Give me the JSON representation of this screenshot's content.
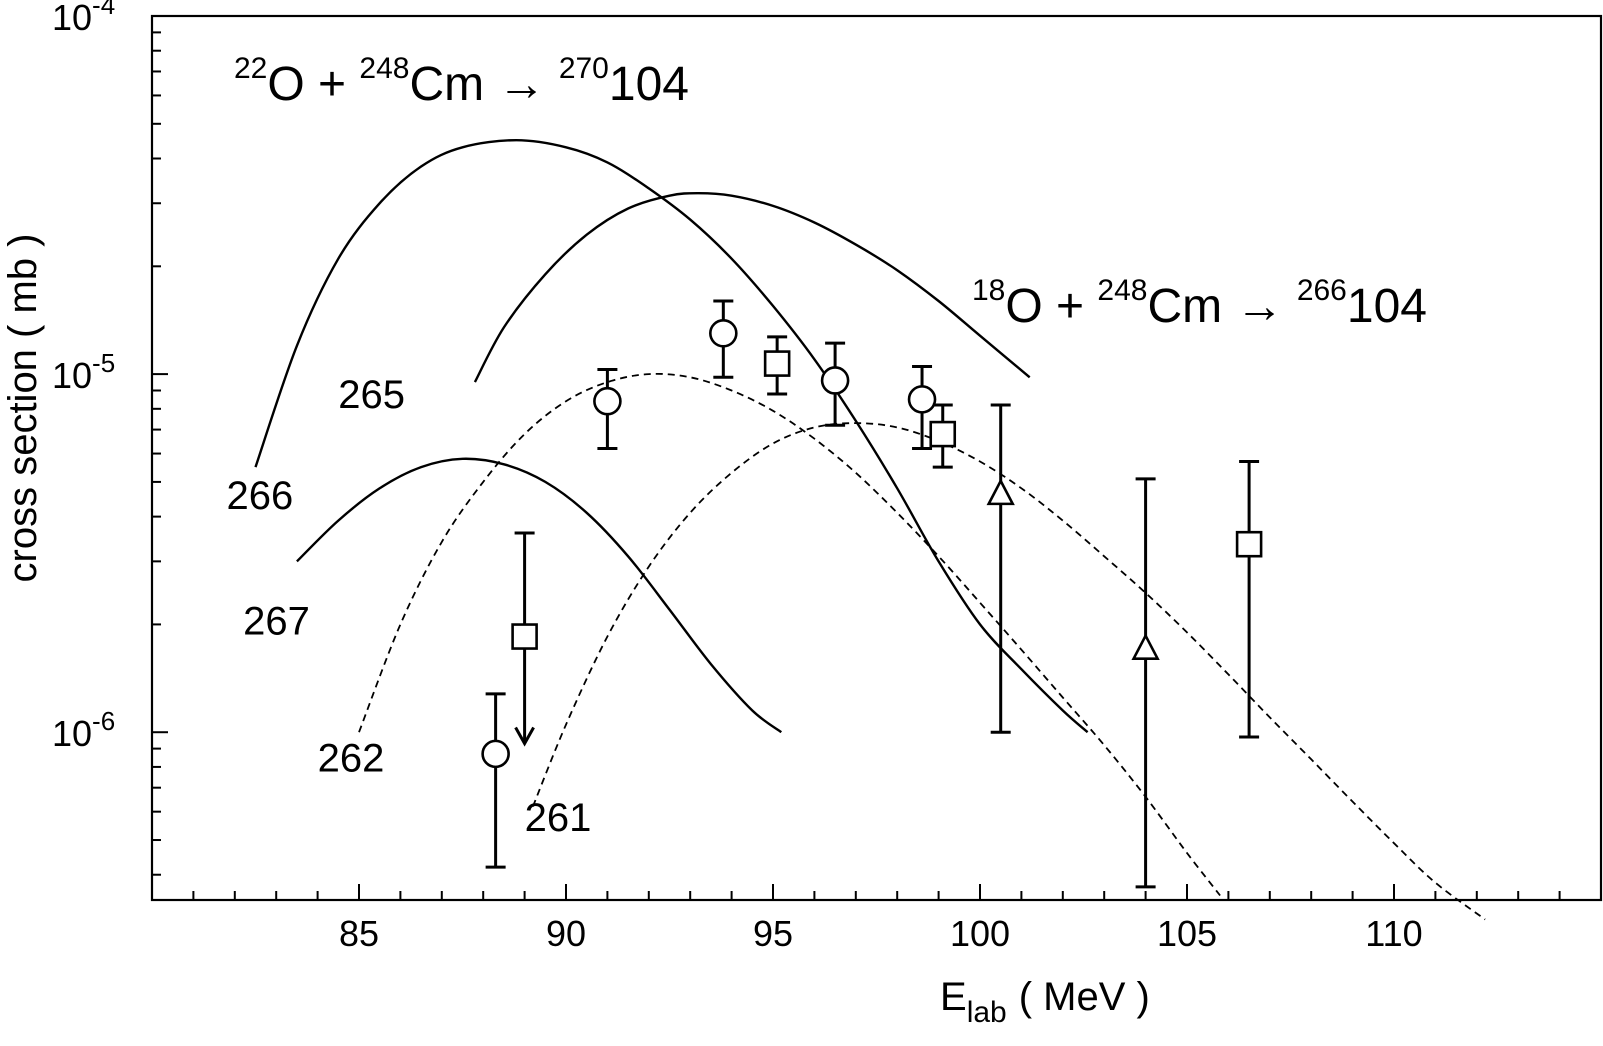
{
  "chart_data": {
    "type": "scatter",
    "xlabel_main": "E",
    "xlabel_sub": "lab",
    "xlabel_unit": "( MeV )",
    "ylabel": "cross section ( mb )",
    "xlim": [
      80,
      115
    ],
    "ylim": [
      3.4e-07,
      0.0001
    ],
    "yscale": "log",
    "x_ticks": [
      85,
      90,
      95,
      100,
      105,
      110
    ],
    "y_tick_labels": [
      {
        "value": 0.0001,
        "base": "10",
        "exp": "-4"
      },
      {
        "value": 1e-05,
        "base": "10",
        "exp": "-5"
      },
      {
        "value": 1e-06,
        "base": "10",
        "exp": "-6"
      }
    ],
    "reactions": [
      {
        "id": "r22",
        "parts": [
          "22",
          "O + ",
          "248",
          "Cm → ",
          "270",
          "104"
        ]
      },
      {
        "id": "r18",
        "parts": [
          "18",
          "O + ",
          "248",
          "Cm → ",
          "266",
          "104"
        ]
      }
    ],
    "series": [
      {
        "name": "266",
        "style": "solid",
        "x": [
          82.5,
          83.5,
          84.5,
          85.5,
          86.5,
          87.5,
          88.8,
          90,
          91,
          92,
          93,
          94,
          95,
          96,
          97,
          98,
          99,
          100,
          101,
          102,
          102.6
        ],
        "y": [
          5.5e-06,
          1.2e-05,
          2.1e-05,
          3e-05,
          3.8e-05,
          4.3e-05,
          4.5e-05,
          4.3e-05,
          3.9e-05,
          3.3e-05,
          2.7e-05,
          2.1e-05,
          1.55e-05,
          1.1e-05,
          7.4e-06,
          4.8e-06,
          3e-06,
          2e-06,
          1.5e-06,
          1.15e-06,
          1e-06
        ]
      },
      {
        "name": "265",
        "style": "solid",
        "x": [
          87.8,
          88.5,
          89.5,
          90.5,
          91.5,
          92.5,
          93.2,
          94,
          95,
          96,
          97,
          98,
          99,
          100,
          101.2
        ],
        "y": [
          9.5e-06,
          1.35e-05,
          1.9e-05,
          2.45e-05,
          2.9e-05,
          3.15e-05,
          3.2e-05,
          3.15e-05,
          2.95e-05,
          2.65e-05,
          2.3e-05,
          1.95e-05,
          1.6e-05,
          1.28e-05,
          9.8e-06
        ]
      },
      {
        "name": "267",
        "style": "solid",
        "x": [
          83.5,
          84.5,
          85.5,
          86.5,
          87.5,
          88.5,
          89.5,
          90.5,
          91.5,
          92.5,
          93.5,
          94.5,
          95.2
        ],
        "y": [
          3e-06,
          3.9e-06,
          4.8e-06,
          5.5e-06,
          5.8e-06,
          5.6e-06,
          5e-06,
          4.1e-06,
          3.1e-06,
          2.2e-06,
          1.55e-06,
          1.15e-06,
          1e-06
        ]
      },
      {
        "name": "262",
        "style": "dashed",
        "x": [
          85,
          86,
          87,
          88,
          89,
          90,
          91,
          92,
          93,
          94,
          95,
          96,
          97,
          98,
          99,
          100,
          101,
          102,
          103,
          104,
          105,
          105.8
        ],
        "y": [
          1e-06,
          2e-06,
          3.4e-06,
          5e-06,
          6.8e-06,
          8.4e-06,
          9.5e-06,
          1e-05,
          9.8e-06,
          9e-06,
          7.9e-06,
          6.6e-06,
          5.3e-06,
          4.1e-06,
          3.1e-06,
          2.3e-06,
          1.7e-06,
          1.25e-06,
          9.2e-07,
          6.6e-07,
          4.6e-07,
          3.5e-07
        ]
      },
      {
        "name": "261",
        "style": "dashed",
        "x": [
          89.2,
          90,
          91,
          92,
          93,
          94,
          95,
          96,
          97,
          98,
          99,
          100,
          101,
          102,
          103,
          104,
          105,
          106,
          107,
          108,
          109,
          110,
          111,
          112.2
        ],
        "y": [
          6.2e-07,
          1.05e-06,
          1.85e-06,
          2.9e-06,
          4.1e-06,
          5.3e-06,
          6.4e-06,
          7.1e-06,
          7.3e-06,
          7.1e-06,
          6.5e-06,
          5.7e-06,
          4.8e-06,
          3.9e-06,
          3.1e-06,
          2.45e-06,
          1.9e-06,
          1.45e-06,
          1.1e-06,
          8.4e-07,
          6.4e-07,
          4.9e-07,
          3.8e-07,
          3e-07
        ]
      }
    ],
    "curve_labels": [
      {
        "text": "266",
        "x": 81.8,
        "y": 4.6e-06
      },
      {
        "text": "265",
        "x": 84.5,
        "y": 8.8e-06
      },
      {
        "text": "267",
        "x": 82.2,
        "y": 2.05e-06
      },
      {
        "text": "262",
        "x": 84.0,
        "y": 8.5e-07
      },
      {
        "text": "261",
        "x": 89.0,
        "y": 5.8e-07
      }
    ],
    "points": [
      {
        "marker": "circle",
        "x": 88.3,
        "y": 8.7e-07,
        "ylo": 4.2e-07,
        "yhi": 1.28e-06
      },
      {
        "marker": "circle",
        "x": 91.0,
        "y": 8.4e-06,
        "ylo": 6.2e-06,
        "yhi": 1.03e-05
      },
      {
        "marker": "circle",
        "x": 93.8,
        "y": 1.3e-05,
        "ylo": 9.8e-06,
        "yhi": 1.6e-05
      },
      {
        "marker": "circle",
        "x": 96.5,
        "y": 9.6e-06,
        "ylo": 7.2e-06,
        "yhi": 1.22e-05
      },
      {
        "marker": "circle",
        "x": 98.6,
        "y": 8.5e-06,
        "ylo": 6.2e-06,
        "yhi": 1.05e-05
      },
      {
        "marker": "square",
        "x": 89.0,
        "y": 1.85e-06,
        "ylo": null,
        "yhi": 3.6e-06,
        "upper_limit": true,
        "arrow_to": 9.3e-07
      },
      {
        "marker": "square",
        "x": 95.1,
        "y": 1.07e-05,
        "ylo": 8.8e-06,
        "yhi": 1.27e-05
      },
      {
        "marker": "square",
        "x": 99.1,
        "y": 6.8e-06,
        "ylo": 5.5e-06,
        "yhi": 8.2e-06
      },
      {
        "marker": "square",
        "x": 106.5,
        "y": 3.35e-06,
        "ylo": 9.7e-07,
        "yhi": 5.7e-06
      },
      {
        "marker": "triangle",
        "x": 100.5,
        "y": 4.6e-06,
        "ylo": 1e-06,
        "yhi": 8.2e-06
      },
      {
        "marker": "triangle",
        "x": 104.0,
        "y": 1.7e-06,
        "ylo": 3.7e-07,
        "yhi": 5.1e-06
      }
    ],
    "grid": false,
    "legend": "none"
  }
}
